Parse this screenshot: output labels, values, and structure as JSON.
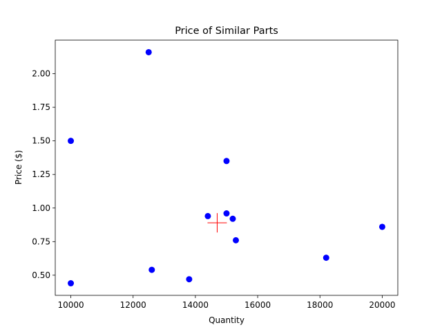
{
  "chart_data": {
    "type": "scatter",
    "title": "Price of Similar Parts",
    "xlabel": "Quantity",
    "ylabel": "Price ($)",
    "xlim": [
      9500,
      20500
    ],
    "ylim": [
      0.35,
      2.25
    ],
    "x_ticks": [
      10000,
      12000,
      14000,
      16000,
      18000,
      20000
    ],
    "y_ticks": [
      0.5,
      0.75,
      1.0,
      1.25,
      1.5,
      1.75,
      2.0
    ],
    "x_tick_labels": [
      "10000",
      "12000",
      "14000",
      "16000",
      "18000",
      "20000"
    ],
    "y_tick_labels": [
      "0.50",
      "0.75",
      "1.00",
      "1.25",
      "1.50",
      "1.75",
      "2.00"
    ],
    "grid": false,
    "series": [
      {
        "marker": "circle",
        "color": "#0000ff",
        "points": [
          {
            "x": 10000,
            "y": 1.5
          },
          {
            "x": 10000,
            "y": 0.44
          },
          {
            "x": 12500,
            "y": 2.16
          },
          {
            "x": 12600,
            "y": 0.54
          },
          {
            "x": 13800,
            "y": 0.47
          },
          {
            "x": 14400,
            "y": 0.94
          },
          {
            "x": 15000,
            "y": 1.35
          },
          {
            "x": 15000,
            "y": 0.96
          },
          {
            "x": 15200,
            "y": 0.92
          },
          {
            "x": 15300,
            "y": 0.76
          },
          {
            "x": 18200,
            "y": 0.63
          },
          {
            "x": 20000,
            "y": 0.86
          }
        ]
      },
      {
        "marker": "plus",
        "color": "#ff0000",
        "points": [
          {
            "x": 14700,
            "y": 0.89
          }
        ]
      }
    ]
  }
}
